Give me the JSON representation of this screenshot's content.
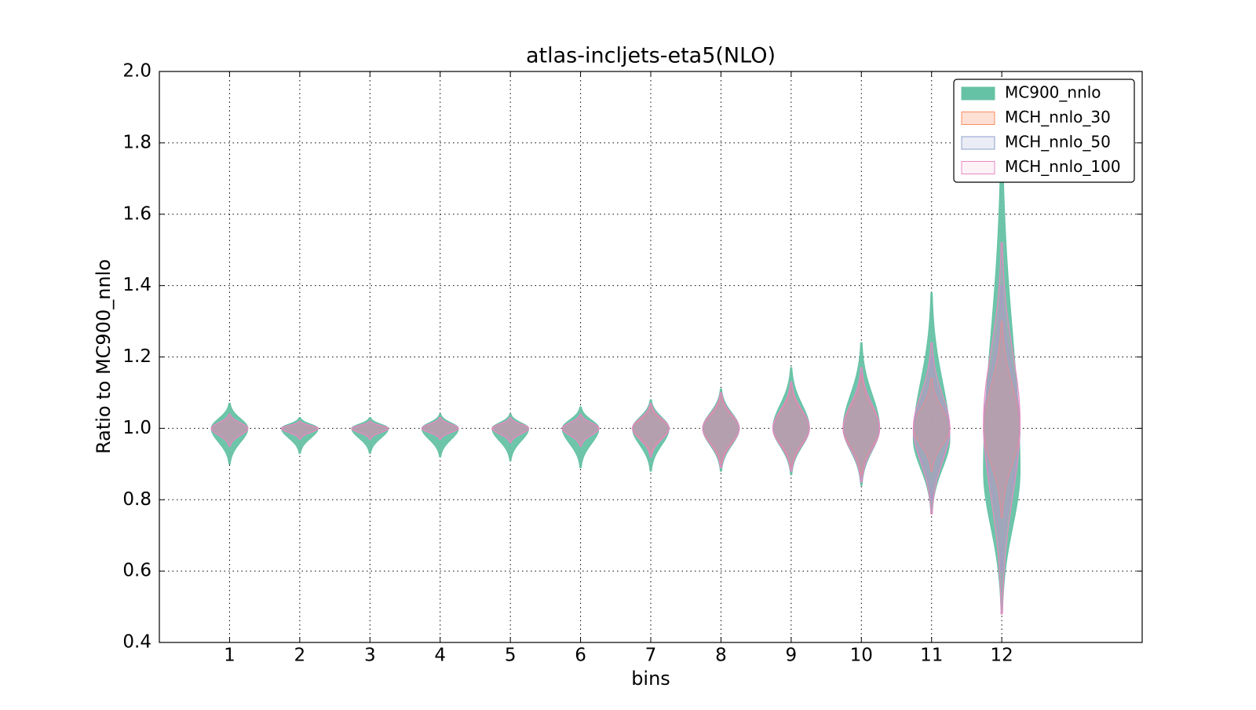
{
  "chart_data": {
    "type": "violin",
    "title": "atlas-incljets-eta5(NLO)",
    "x_label": "bins",
    "y_label": "Ratio to MC900_nnlo",
    "x": [
      1,
      2,
      3,
      4,
      5,
      6,
      7,
      8,
      9,
      10,
      11,
      12
    ],
    "xlim": [
      0,
      14
    ],
    "xticks": [
      1,
      2,
      3,
      4,
      5,
      6,
      7,
      8,
      9,
      10,
      11,
      12
    ],
    "ylim": [
      0.4,
      2.0
    ],
    "yticks": [
      {
        "value": 0.4,
        "label": "0.4"
      },
      {
        "value": 0.6,
        "label": "0.6"
      },
      {
        "value": 0.8,
        "label": "0.8"
      },
      {
        "value": 1.0,
        "label": "1.0"
      },
      {
        "value": 1.2,
        "label": "1.2"
      },
      {
        "value": 1.4,
        "label": "1.4"
      },
      {
        "value": 1.6,
        "label": "1.6"
      },
      {
        "value": 1.8,
        "label": "1.8"
      },
      {
        "value": 2.0,
        "label": "2.0"
      }
    ],
    "grid": true,
    "legend": "upper right",
    "series": [
      {
        "name": "MC900_nnlo",
        "color": "#66c2a5",
        "min": [
          0.9,
          0.93,
          0.93,
          0.92,
          0.91,
          0.89,
          0.88,
          0.88,
          0.87,
          0.84,
          0.76,
          0.48
        ],
        "max": [
          1.07,
          1.03,
          1.03,
          1.04,
          1.04,
          1.06,
          1.08,
          1.11,
          1.17,
          1.24,
          1.38,
          1.85
        ],
        "center": [
          1.0,
          1.0,
          1.0,
          1.0,
          1.0,
          1.0,
          1.0,
          1.0,
          1.0,
          1.0,
          0.97,
          0.88
        ]
      },
      {
        "name": "MCH_nnlo_30",
        "color": "#fc8d62",
        "min": [
          0.95,
          0.97,
          0.97,
          0.97,
          0.96,
          0.95,
          0.93,
          0.9,
          0.89,
          0.87,
          0.88,
          0.75
        ],
        "max": [
          1.04,
          1.02,
          1.02,
          1.03,
          1.03,
          1.04,
          1.06,
          1.09,
          1.12,
          1.15,
          1.14,
          1.3
        ],
        "center": [
          1.0,
          1.0,
          1.0,
          1.0,
          1.0,
          1.0,
          1.0,
          1.0,
          1.0,
          1.0,
          1.0,
          1.0
        ]
      },
      {
        "name": "MCH_nnlo_50",
        "color": "#8da0cb",
        "min": [
          0.95,
          0.97,
          0.97,
          0.97,
          0.96,
          0.95,
          0.92,
          0.89,
          0.88,
          0.85,
          0.8,
          0.6
        ],
        "max": [
          1.04,
          1.02,
          1.02,
          1.03,
          1.03,
          1.04,
          1.07,
          1.1,
          1.13,
          1.17,
          1.2,
          1.4
        ],
        "center": [
          1.0,
          1.0,
          1.0,
          1.0,
          1.0,
          1.0,
          1.0,
          1.0,
          1.0,
          1.0,
          0.99,
          1.0
        ]
      },
      {
        "name": "MCH_nnlo_100",
        "color": "#e78ac3",
        "min": [
          0.95,
          0.97,
          0.97,
          0.97,
          0.96,
          0.95,
          0.92,
          0.89,
          0.88,
          0.85,
          0.76,
          0.48
        ],
        "max": [
          1.04,
          1.02,
          1.02,
          1.03,
          1.03,
          1.04,
          1.07,
          1.1,
          1.13,
          1.17,
          1.24,
          1.52
        ],
        "center": [
          1.0,
          1.0,
          1.0,
          1.0,
          1.0,
          1.0,
          1.0,
          1.0,
          1.0,
          1.0,
          1.0,
          1.02
        ]
      }
    ]
  }
}
